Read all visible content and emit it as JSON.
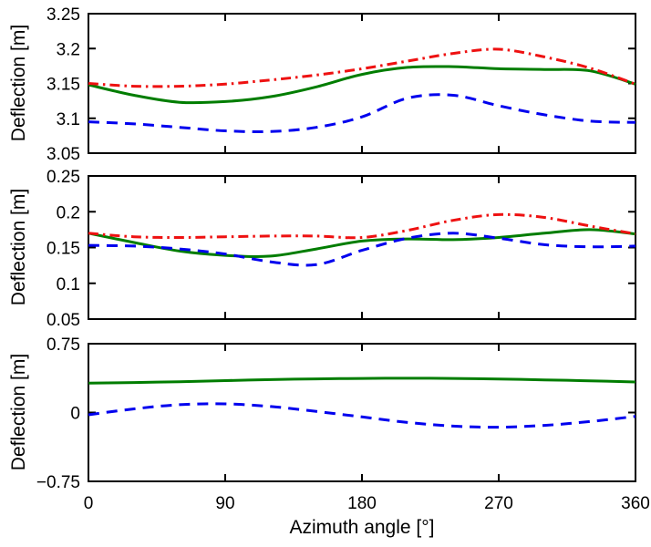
{
  "figure": {
    "background": "#ffffff",
    "axis_color": "#000000",
    "text_color": "#000000",
    "xlabel": "Azimuth angle [°]",
    "ylabel": "Deflection [m]",
    "x_ticks": [
      0,
      90,
      180,
      270,
      360
    ],
    "x_tick_labels": [
      "0",
      "90",
      "180",
      "270",
      "360"
    ],
    "line_colors": {
      "red": "#ee1111",
      "green": "#007d00",
      "blue": "#0000ee"
    }
  },
  "chart_data": [
    {
      "type": "line",
      "ylabel": "Deflection [m]",
      "xlim": [
        0,
        360
      ],
      "ylim": [
        3.05,
        3.25
      ],
      "y_ticks": [
        3.05,
        3.1,
        3.15,
        3.2,
        3.25
      ],
      "y_tick_labels": [
        "3.05",
        "3.1",
        "3.15",
        "3.2",
        "3.25"
      ],
      "grid": false,
      "legend": "none",
      "x": [
        0,
        30,
        60,
        90,
        120,
        150,
        180,
        210,
        240,
        270,
        300,
        330,
        360
      ],
      "series": [
        {
          "name": "green-solid",
          "color": "#007d00",
          "style": "solid",
          "values": [
            3.148,
            3.133,
            3.123,
            3.124,
            3.131,
            3.145,
            3.163,
            3.173,
            3.174,
            3.171,
            3.17,
            3.168,
            3.149
          ]
        },
        {
          "name": "blue-dashed",
          "color": "#0000ee",
          "style": "dashed",
          "values": [
            3.095,
            3.092,
            3.087,
            3.082,
            3.081,
            3.087,
            3.102,
            3.129,
            3.133,
            3.118,
            3.105,
            3.096,
            3.094
          ]
        },
        {
          "name": "red-dash-dot",
          "color": "#ee1111",
          "style": "dashdot",
          "values": [
            3.15,
            3.146,
            3.146,
            3.149,
            3.155,
            3.162,
            3.171,
            3.182,
            3.193,
            3.199,
            3.188,
            3.172,
            3.149
          ]
        }
      ]
    },
    {
      "type": "line",
      "ylabel": "Deflection [m]",
      "xlim": [
        0,
        360
      ],
      "ylim": [
        0.05,
        0.25
      ],
      "y_ticks": [
        0.05,
        0.1,
        0.15,
        0.2,
        0.25
      ],
      "y_tick_labels": [
        "0.05",
        "0.1",
        "0.15",
        "0.2",
        "0.25"
      ],
      "grid": false,
      "legend": "none",
      "x": [
        0,
        30,
        60,
        90,
        120,
        150,
        180,
        210,
        240,
        270,
        300,
        330,
        360
      ],
      "series": [
        {
          "name": "green-solid",
          "color": "#007d00",
          "style": "solid",
          "values": [
            0.17,
            0.157,
            0.145,
            0.139,
            0.138,
            0.148,
            0.159,
            0.162,
            0.161,
            0.164,
            0.17,
            0.175,
            0.169
          ]
        },
        {
          "name": "blue-dashed",
          "color": "#0000ee",
          "style": "dashed",
          "values": [
            0.153,
            0.152,
            0.148,
            0.141,
            0.13,
            0.126,
            0.146,
            0.163,
            0.17,
            0.163,
            0.154,
            0.151,
            0.152
          ]
        },
        {
          "name": "red-dash-dot",
          "color": "#ee1111",
          "style": "dashdot",
          "values": [
            0.17,
            0.165,
            0.164,
            0.165,
            0.166,
            0.166,
            0.164,
            0.174,
            0.188,
            0.196,
            0.192,
            0.18,
            0.169
          ]
        }
      ]
    },
    {
      "type": "line",
      "ylabel": "Deflection [m]",
      "xlabel": "Azimuth angle [°]",
      "xlim": [
        0,
        360
      ],
      "ylim": [
        -0.75,
        0.75
      ],
      "y_ticks": [
        -0.75,
        0,
        0.75
      ],
      "y_tick_labels": [
        "−0.75",
        "0",
        "0.75"
      ],
      "grid": false,
      "legend": "none",
      "x": [
        0,
        30,
        60,
        90,
        120,
        150,
        180,
        210,
        240,
        270,
        300,
        330,
        360
      ],
      "series": [
        {
          "name": "green-solid",
          "color": "#007d00",
          "style": "solid",
          "values": [
            0.32,
            0.327,
            0.336,
            0.348,
            0.359,
            0.367,
            0.372,
            0.374,
            0.372,
            0.366,
            0.356,
            0.346,
            0.333
          ]
        },
        {
          "name": "blue-dashed",
          "color": "#0000ee",
          "style": "dashed",
          "values": [
            -0.025,
            0.04,
            0.085,
            0.094,
            0.066,
            0.012,
            -0.048,
            -0.108,
            -0.148,
            -0.16,
            -0.14,
            -0.098,
            -0.042
          ]
        }
      ]
    }
  ]
}
